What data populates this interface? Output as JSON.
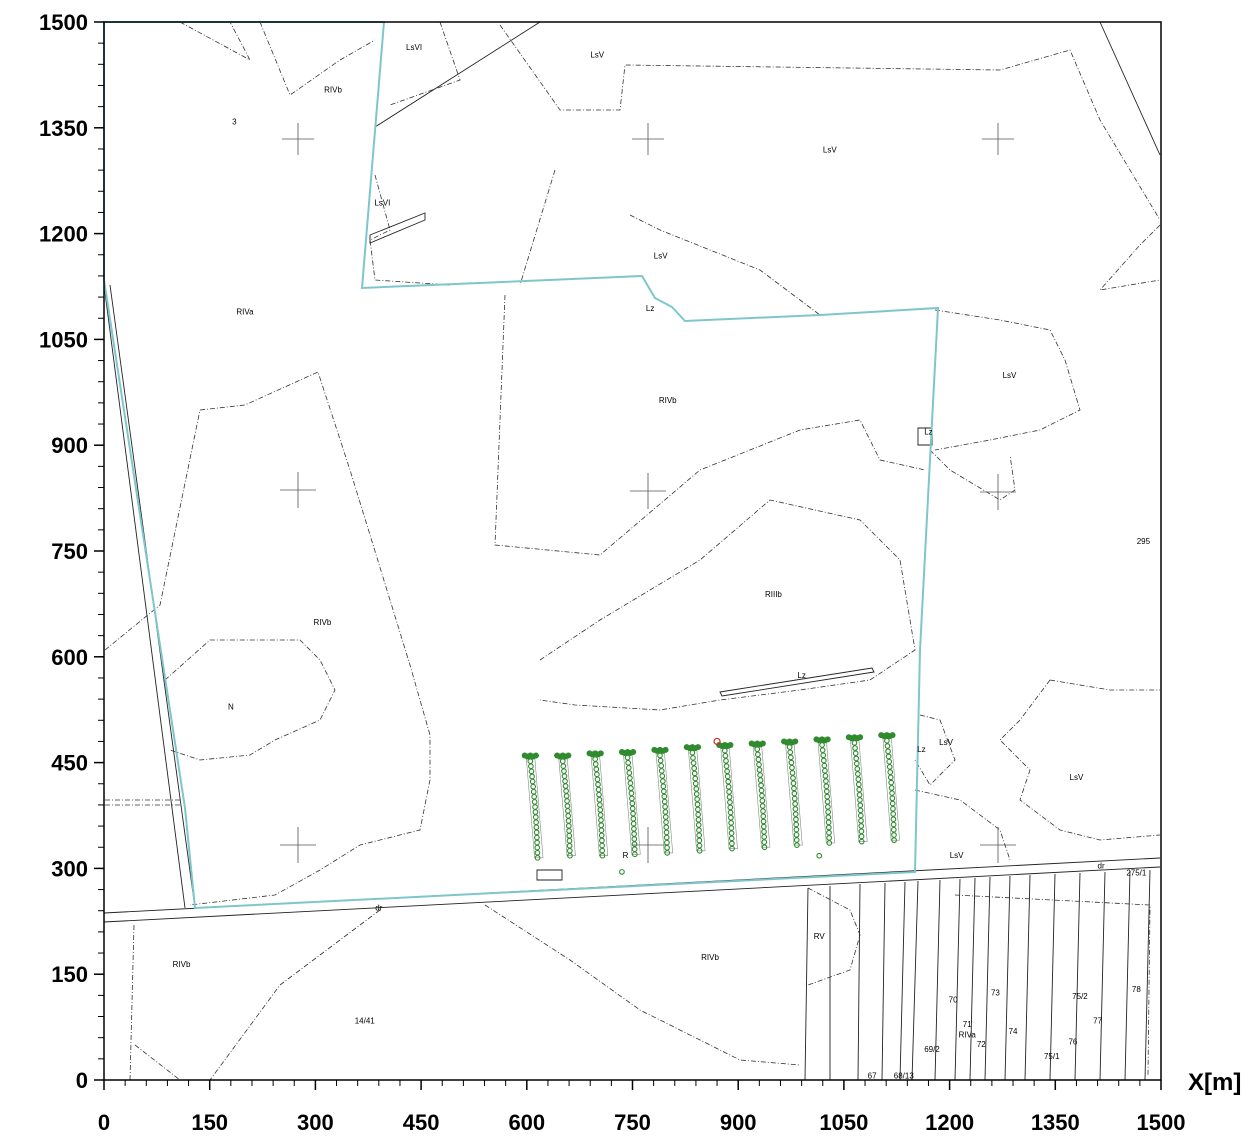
{
  "axes": {
    "x_title": "X[m]",
    "x_ticks": [
      "0",
      "150",
      "300",
      "450",
      "600",
      "750",
      "900",
      "1050",
      "1200",
      "1350",
      "1500"
    ],
    "y_ticks": [
      "0",
      "150",
      "300",
      "450",
      "600",
      "750",
      "900",
      "1050",
      "1200",
      "1350",
      "1500"
    ],
    "x_range": [
      0,
      1500
    ],
    "y_range": [
      0,
      1500
    ]
  },
  "parcel_labels": [
    {
      "text": "LsVI",
      "x": 440,
      "y": 1460
    },
    {
      "text": "LsV",
      "x": 700,
      "y": 1450
    },
    {
      "text": "RIVb",
      "x": 325,
      "y": 1400
    },
    {
      "text": "3",
      "x": 185,
      "y": 1355
    },
    {
      "text": "LsV",
      "x": 1030,
      "y": 1315
    },
    {
      "text": "LsVI",
      "x": 395,
      "y": 1240
    },
    {
      "text": "LsV",
      "x": 790,
      "y": 1165
    },
    {
      "text": "RIVa",
      "x": 200,
      "y": 1085
    },
    {
      "text": "Lz",
      "x": 775,
      "y": 1090
    },
    {
      "text": "LsV",
      "x": 1285,
      "y": 995
    },
    {
      "text": "RIVb",
      "x": 800,
      "y": 960
    },
    {
      "text": "Lz",
      "x": 1170,
      "y": 915
    },
    {
      "text": "295",
      "x": 1475,
      "y": 760
    },
    {
      "text": "RIIIb",
      "x": 950,
      "y": 685
    },
    {
      "text": "RIVb",
      "x": 310,
      "y": 645
    },
    {
      "text": "Lz",
      "x": 990,
      "y": 570
    },
    {
      "text": "N",
      "x": 180,
      "y": 525
    },
    {
      "text": "LsV",
      "x": 1195,
      "y": 475
    },
    {
      "text": "Lz",
      "x": 1160,
      "y": 465
    },
    {
      "text": "LsV",
      "x": 1380,
      "y": 425
    },
    {
      "text": "LsV",
      "x": 1210,
      "y": 315
    },
    {
      "text": "R",
      "x": 740,
      "y": 315
    },
    {
      "text": "dr",
      "x": 1415,
      "y": 300
    },
    {
      "text": "275/1",
      "x": 1465,
      "y": 290
    },
    {
      "text": "dr",
      "x": 390,
      "y": 240
    },
    {
      "text": "RIVb",
      "x": 110,
      "y": 160
    },
    {
      "text": "RIVb",
      "x": 860,
      "y": 170
    },
    {
      "text": "RV",
      "x": 1015,
      "y": 200
    },
    {
      "text": "14/41",
      "x": 370,
      "y": 80
    },
    {
      "text": "70",
      "x": 1205,
      "y": 110
    },
    {
      "text": "73",
      "x": 1265,
      "y": 120
    },
    {
      "text": "75/2",
      "x": 1385,
      "y": 115
    },
    {
      "text": "78",
      "x": 1465,
      "y": 125
    },
    {
      "text": "77",
      "x": 1410,
      "y": 80
    },
    {
      "text": "71",
      "x": 1225,
      "y": 75
    },
    {
      "text": "74",
      "x": 1290,
      "y": 65
    },
    {
      "text": "RIVa",
      "x": 1225,
      "y": 60
    },
    {
      "text": "72",
      "x": 1245,
      "y": 47
    },
    {
      "text": "76",
      "x": 1375,
      "y": 50
    },
    {
      "text": "69/2",
      "x": 1175,
      "y": 40
    },
    {
      "text": "75/1",
      "x": 1345,
      "y": 30
    },
    {
      "text": "67",
      "x": 1090,
      "y": 2
    },
    {
      "text": "68/13",
      "x": 1135,
      "y": 2
    }
  ],
  "turbine_rows": {
    "count": 12,
    "top_y": [
      460,
      460,
      463,
      465,
      468,
      472,
      475,
      477,
      480,
      483,
      486,
      489
    ],
    "bottom_y": [
      315,
      318,
      318,
      320,
      322,
      325,
      328,
      330,
      333,
      336,
      338,
      340
    ],
    "start_x": 605,
    "spacing_x": 46,
    "points_per_row": 20,
    "color": "#2e8b2e",
    "marker_color": "#d22b2b",
    "extra_points": [
      {
        "x": 735,
        "y": 295
      },
      {
        "x": 1015,
        "y": 318
      }
    ]
  },
  "colors": {
    "boundary": "#7fc6cc",
    "turbine": "#2e8b2e",
    "highlight": "#d22b2b"
  }
}
